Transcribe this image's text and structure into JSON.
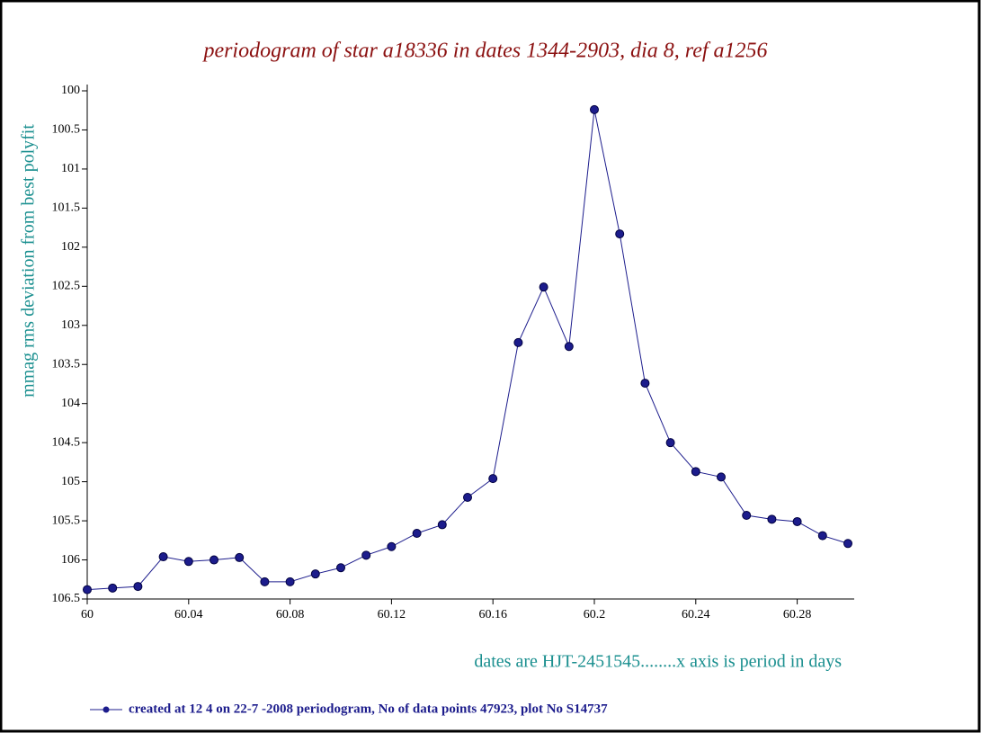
{
  "chart_data": {
    "type": "line",
    "title": "periodogram of star a18336 in dates 1344-2903, dia 8, ref a1256",
    "x_label": "dates are HJT-2451545........x axis is period in days",
    "y_label": "mmag rms deviation from best polyfit",
    "x": [
      60,
      60.01,
      60.02,
      60.03,
      60.04,
      60.05,
      60.06,
      60.07,
      60.08,
      60.09,
      60.1,
      60.11,
      60.12,
      60.13,
      60.14,
      60.15,
      60.16,
      60.17,
      60.18,
      60.19,
      60.2,
      60.21,
      60.22,
      60.23,
      60.24,
      60.25,
      60.26,
      60.27,
      60.28,
      60.29,
      60.3
    ],
    "series": [
      {
        "name": "created at 12 4 on 22-7 -2008 periodogram, No of data points 47923,  plot No S14737",
        "color": "#1c1c8c",
        "values": [
          106.38,
          106.36,
          106.34,
          105.96,
          106.02,
          106.0,
          105.97,
          106.28,
          106.28,
          106.18,
          106.1,
          105.94,
          105.83,
          105.66,
          105.55,
          105.2,
          104.96,
          103.22,
          102.51,
          103.27,
          100.24,
          101.83,
          103.74,
          104.5,
          104.87,
          104.94,
          105.43,
          105.48,
          105.51,
          105.69,
          105.79
        ]
      }
    ],
    "xlim": [
      60,
      60.3
    ],
    "xticks": [
      60,
      60.04,
      60.08,
      60.12,
      60.16,
      60.2,
      60.24,
      60.28
    ],
    "ylim": [
      106.5,
      100
    ],
    "yticks": [
      100,
      100.5,
      101,
      101.5,
      102,
      102.5,
      103,
      103.5,
      104,
      104.5,
      105,
      105.5,
      106,
      106.5
    ],
    "grid": false
  }
}
